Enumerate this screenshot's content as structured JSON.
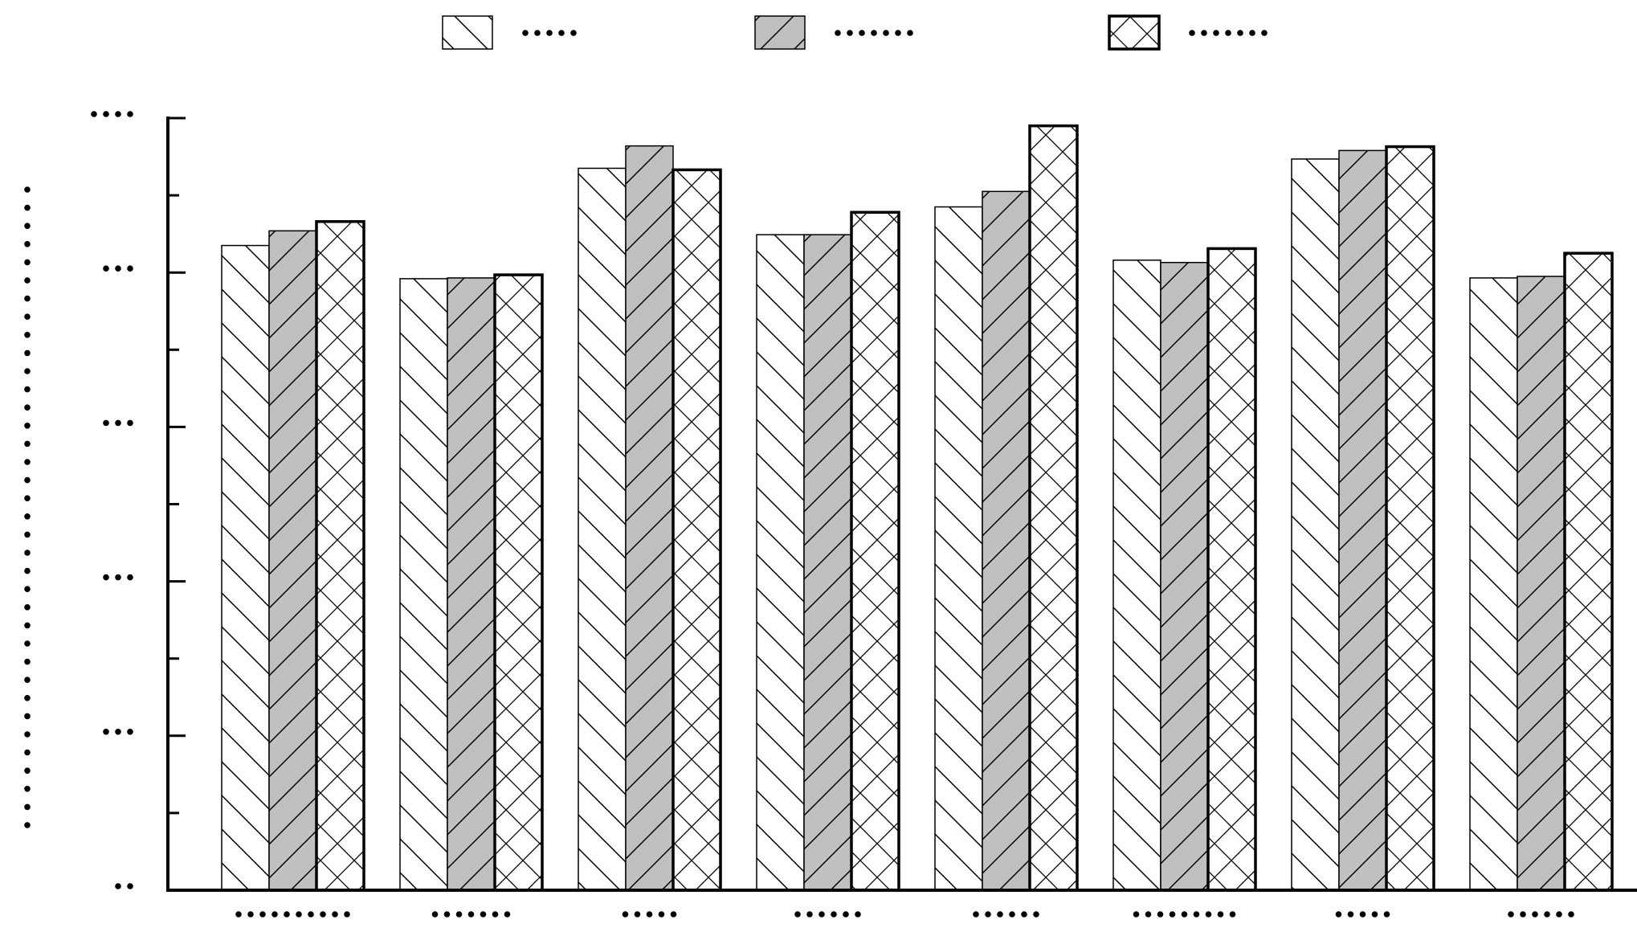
{
  "chart_data": {
    "type": "bar",
    "title": "",
    "xlabel": "",
    "ylabel": "",
    "ylim": [
      0,
      100
    ],
    "y_ticks_major": [
      0,
      20,
      40,
      60,
      80,
      100
    ],
    "categories": [
      "",
      "",
      "",
      "",
      "",
      "",
      "",
      ""
    ],
    "series": [
      {
        "values": [
          83.5,
          79.2,
          93.5,
          84.9,
          88.5,
          81.6,
          94.7,
          79.3
        ]
      },
      {
        "values": [
          85.4,
          79.3,
          96.4,
          84.9,
          90.5,
          81.3,
          95.8,
          79.5
        ]
      },
      {
        "values": [
          86.6,
          79.7,
          93.3,
          87.8,
          99.0,
          83.1,
          96.3,
          82.5
        ]
      }
    ],
    "legend": {
      "position": "top"
    },
    "grid": false,
    "colors": {
      "series_1_fill": "#ffffff",
      "series_2_fill": "#c0c0c0",
      "series_3_fill": "#ffffff",
      "stroke": "#000000"
    }
  }
}
